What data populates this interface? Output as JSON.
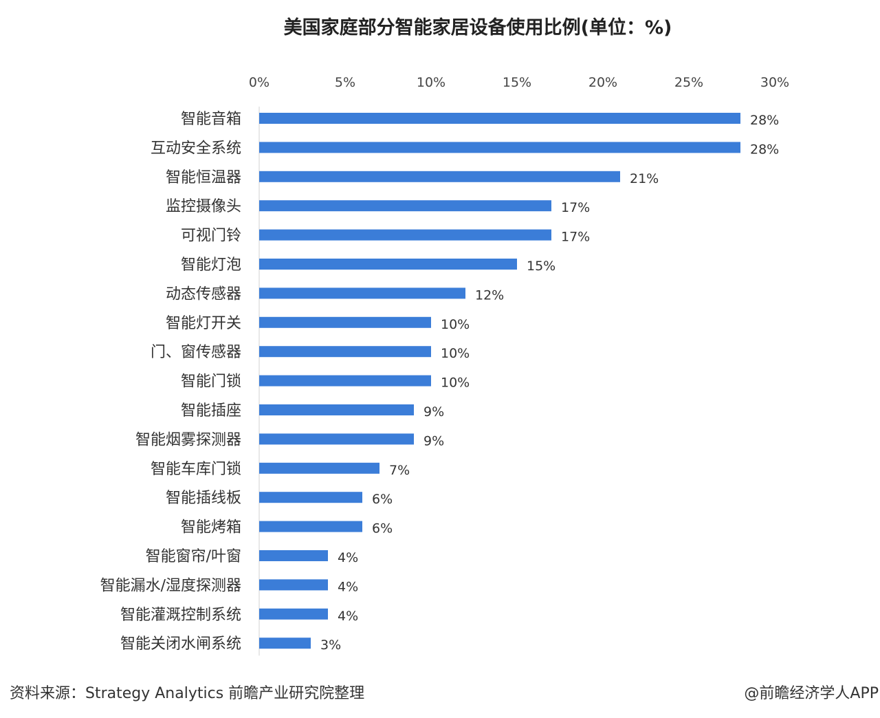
{
  "chart_data": {
    "type": "bar",
    "orientation": "horizontal",
    "title": "美国家庭部分智能家居设备使用比例(单位：%)",
    "categories": [
      "智能音箱",
      "互动安全系统",
      "智能恒温器",
      "监控摄像头",
      "可视门铃",
      "智能灯泡",
      "动态传感器",
      "智能灯开关",
      "门、窗传感器",
      "智能门锁",
      "智能插座",
      "智能烟雾探测器",
      "智能车库门锁",
      "智能插线板",
      "智能烤箱",
      "智能窗帘/叶窗",
      "智能漏水/湿度探测器",
      "智能灌溉控制系统",
      "智能关闭水闸系统"
    ],
    "values": [
      28,
      28,
      21,
      17,
      17,
      15,
      12,
      10,
      10,
      10,
      9,
      9,
      7,
      6,
      6,
      4,
      4,
      4,
      3
    ],
    "value_labels": [
      "28%",
      "28%",
      "21%",
      "17%",
      "17%",
      "15%",
      "12%",
      "10%",
      "10%",
      "10%",
      "9%",
      "9%",
      "7%",
      "6%",
      "6%",
      "4%",
      "4%",
      "4%",
      "3%"
    ],
    "xticks": [
      "0%",
      "5%",
      "10%",
      "15%",
      "20%",
      "25%",
      "30%"
    ],
    "xlim": [
      0,
      30
    ],
    "axis_position": "top",
    "grid": false,
    "bar_color": "#3b7dd8"
  },
  "footer": {
    "source": "资料来源：Strategy Analytics 前瞻产业研究院整理",
    "brand": "@前瞻经济学人APP"
  }
}
